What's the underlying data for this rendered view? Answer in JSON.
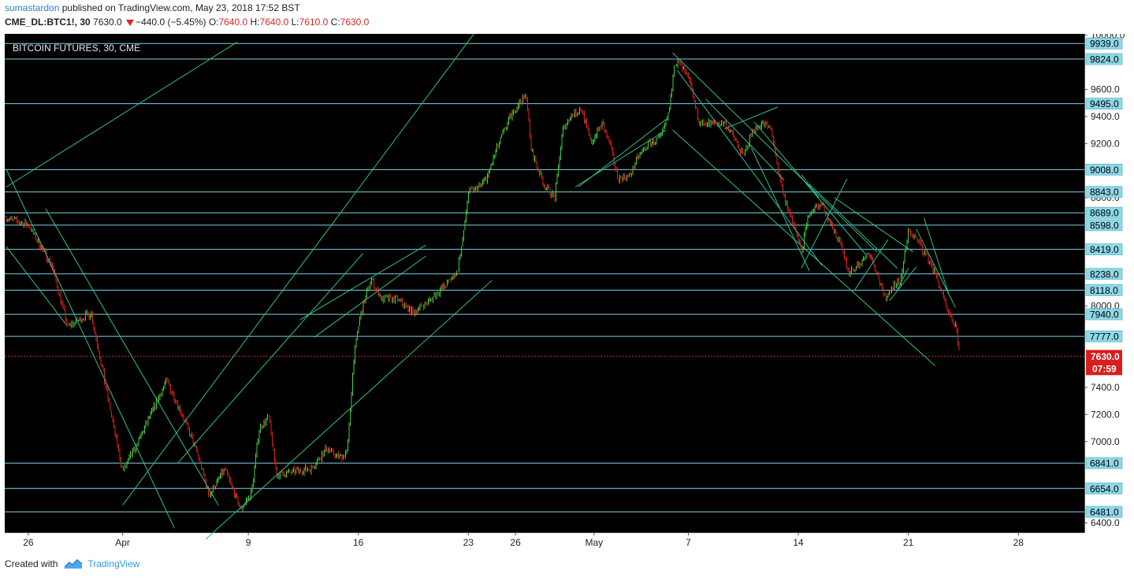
{
  "header": {
    "author": "sumastardon",
    "published_text": "published on TradingView.com, May 23, 2018 17:52 BST",
    "symbol": "CME_DL:BTC1!, 30",
    "last": "7630.0",
    "change": "−440.0 (−5.45%)",
    "o_label": "O:",
    "o_value": "7640.0",
    "h_label": "H:",
    "h_value": "7640.0",
    "l_label": "L:",
    "l_value": "7610.0",
    "c_label": "C:",
    "c_value": "7630.0"
  },
  "footer": {
    "created_with": "Created with",
    "brand": "TradingView"
  },
  "colors": {
    "background": "#000000",
    "level_line": "#7fd1e6",
    "trend_line": "#2fbf8f",
    "up_candle": "#3fcf3f",
    "down_candle": "#e02020",
    "price_label": "#d81e1e",
    "level_label_bg": "#8fd8e8",
    "axis_text": "#222222"
  },
  "chart_data": {
    "type": "candlestick",
    "title": "BITCOIN FUTURES, 30, CME",
    "ylim": [
      6330,
      10010
    ],
    "y_ticks": [
      "10000.0",
      "9600.0",
      "9400.0",
      "9200.0",
      "8800.0",
      "8000.0",
      "7400.0",
      "7200.0",
      "7000.0",
      "6400.0"
    ],
    "x_labels": [
      {
        "label": "26",
        "t": 0.5
      },
      {
        "label": "Apr",
        "t": 6.5
      },
      {
        "label": "9",
        "t": 14.5
      },
      {
        "label": "16",
        "t": 21.5
      },
      {
        "label": "23",
        "t": 28.5
      },
      {
        "label": "26",
        "t": 31.5
      },
      {
        "label": "May",
        "t": 36.5
      },
      {
        "label": "7",
        "t": 42.5
      },
      {
        "label": "14",
        "t": 49.5
      },
      {
        "label": "21",
        "t": 56.5
      },
      {
        "label": "28",
        "t": 63.5
      }
    ],
    "x_range": [
      -1.0,
      67.7
    ],
    "levels": [
      "9939.0",
      "9824.0",
      "9495.0",
      "9008.0",
      "8843.0",
      "8689.0",
      "8598.0",
      "8419.0",
      "8238.0",
      "8118.0",
      "7940.0",
      "7777.0",
      "6841.0",
      "6654.0",
      "6481.0"
    ],
    "current_price": "7630.0",
    "countdown": "07:59",
    "price_path": [
      [
        -0.9,
        8650
      ],
      [
        0.5,
        8600
      ],
      [
        2,
        8300
      ],
      [
        3,
        7850
      ],
      [
        4.5,
        7950
      ],
      [
        5.6,
        7300
      ],
      [
        6.5,
        6780
      ],
      [
        7.3,
        6950
      ],
      [
        8.3,
        7200
      ],
      [
        9.3,
        7450
      ],
      [
        10.3,
        7200
      ],
      [
        11.3,
        6900
      ],
      [
        12,
        6600
      ],
      [
        13,
        6800
      ],
      [
        14,
        6500
      ],
      [
        14.7,
        6620
      ],
      [
        15.2,
        7100
      ],
      [
        15.8,
        7180
      ],
      [
        16.3,
        6750
      ],
      [
        17.5,
        6780
      ],
      [
        18.5,
        6800
      ],
      [
        19.5,
        6950
      ],
      [
        20.3,
        6880
      ],
      [
        20.8,
        6930
      ],
      [
        21.2,
        7600
      ],
      [
        21.6,
        7920
      ],
      [
        22.3,
        8200
      ],
      [
        23,
        8050
      ],
      [
        24,
        8050
      ],
      [
        25,
        7950
      ],
      [
        26,
        8040
      ],
      [
        27,
        8150
      ],
      [
        27.8,
        8260
      ],
      [
        28.2,
        8530
      ],
      [
        28.5,
        8840
      ],
      [
        29.2,
        8880
      ],
      [
        29.7,
        8950
      ],
      [
        30.2,
        9130
      ],
      [
        30.8,
        9300
      ],
      [
        31.2,
        9400
      ],
      [
        31.7,
        9500
      ],
      [
        32.2,
        9550
      ],
      [
        32.5,
        9150
      ],
      [
        33.3,
        8900
      ],
      [
        34,
        8800
      ],
      [
        34.5,
        9300
      ],
      [
        35,
        9400
      ],
      [
        35.7,
        9460
      ],
      [
        36.3,
        9200
      ],
      [
        37,
        9350
      ],
      [
        37.5,
        9200
      ],
      [
        38,
        8950
      ],
      [
        38.7,
        8950
      ],
      [
        39.3,
        9100
      ],
      [
        40,
        9200
      ],
      [
        40.8,
        9250
      ],
      [
        41.3,
        9450
      ],
      [
        41.6,
        9800
      ],
      [
        42,
        9780
      ],
      [
        42.6,
        9650
      ],
      [
        43.2,
        9350
      ],
      [
        44,
        9350
      ],
      [
        44.8,
        9350
      ],
      [
        45.4,
        9250
      ],
      [
        46,
        9100
      ],
      [
        46.6,
        9300
      ],
      [
        47.2,
        9350
      ],
      [
        47.8,
        9300
      ],
      [
        48.2,
        9000
      ],
      [
        48.6,
        8800
      ],
      [
        49.2,
        8600
      ],
      [
        49.7,
        8400
      ],
      [
        50.2,
        8700
      ],
      [
        51,
        8750
      ],
      [
        51.6,
        8600
      ],
      [
        52.2,
        8450
      ],
      [
        52.7,
        8250
      ],
      [
        53.3,
        8300
      ],
      [
        54,
        8400
      ],
      [
        54.5,
        8250
      ],
      [
        55,
        8050
      ],
      [
        55.5,
        8150
      ],
      [
        56,
        8180
      ],
      [
        56.5,
        8550
      ],
      [
        57,
        8500
      ],
      [
        57.5,
        8400
      ],
      [
        58,
        8300
      ],
      [
        58.5,
        8150
      ],
      [
        59,
        7950
      ],
      [
        59.5,
        7850
      ],
      [
        59.8,
        7630
      ]
    ],
    "trend_lines": [
      [
        [
          -0.9,
          9010
        ],
        [
          9.8,
          6360
        ]
      ],
      [
        [
          -0.9,
          8880
        ],
        [
          13.8,
          9950
        ]
      ],
      [
        [
          -0.9,
          8440
        ],
        [
          3,
          7850
        ]
      ],
      [
        [
          1.6,
          8720
        ],
        [
          12.6,
          6530
        ]
      ],
      [
        [
          6.5,
          6530
        ],
        [
          32,
          10500
        ]
      ],
      [
        [
          11.8,
          6280
        ],
        [
          30,
          8190
        ]
      ],
      [
        [
          10,
          6840
        ],
        [
          21.8,
          8390
        ]
      ],
      [
        [
          18.7,
          7770
        ],
        [
          25.8,
          8370
        ]
      ],
      [
        [
          17.8,
          7900
        ],
        [
          25.8,
          8450
        ]
      ],
      [
        [
          35.5,
          8880
        ],
        [
          41.1,
          9380
        ]
      ],
      [
        [
          35.3,
          8880
        ],
        [
          41.1,
          9300
        ]
      ],
      [
        [
          41.5,
          9870
        ],
        [
          54.5,
          8400
        ]
      ],
      [
        [
          41.8,
          9740
        ],
        [
          51,
          8300
        ]
      ],
      [
        [
          41.5,
          9300
        ],
        [
          58.2,
          7560
        ]
      ],
      [
        [
          43.6,
          9530
        ],
        [
          48.6,
          8930
        ]
      ],
      [
        [
          44.8,
          9310
        ],
        [
          48.2,
          9470
        ]
      ],
      [
        [
          46.7,
          9360
        ],
        [
          53.8,
          8380
        ]
      ],
      [
        [
          46.5,
          9170
        ],
        [
          50.2,
          8260
        ]
      ],
      [
        [
          49.7,
          8280
        ],
        [
          52.6,
          8940
        ]
      ],
      [
        [
          49.7,
          8970
        ],
        [
          50.8,
          8800
        ]
      ],
      [
        [
          50.2,
          8900
        ],
        [
          55.8,
          8280
        ]
      ],
      [
        [
          51.8,
          8800
        ],
        [
          56.8,
          8400
        ]
      ],
      [
        [
          53.1,
          8120
        ],
        [
          55.2,
          8490
        ]
      ],
      [
        [
          55.3,
          8040
        ],
        [
          57,
          8290
        ]
      ],
      [
        [
          55.8,
          8120
        ],
        [
          56.5,
          8280
        ]
      ],
      [
        [
          57,
          8570
        ],
        [
          59.5,
          7990
        ]
      ],
      [
        [
          57.5,
          8650
        ],
        [
          59.1,
          8080
        ]
      ]
    ]
  }
}
